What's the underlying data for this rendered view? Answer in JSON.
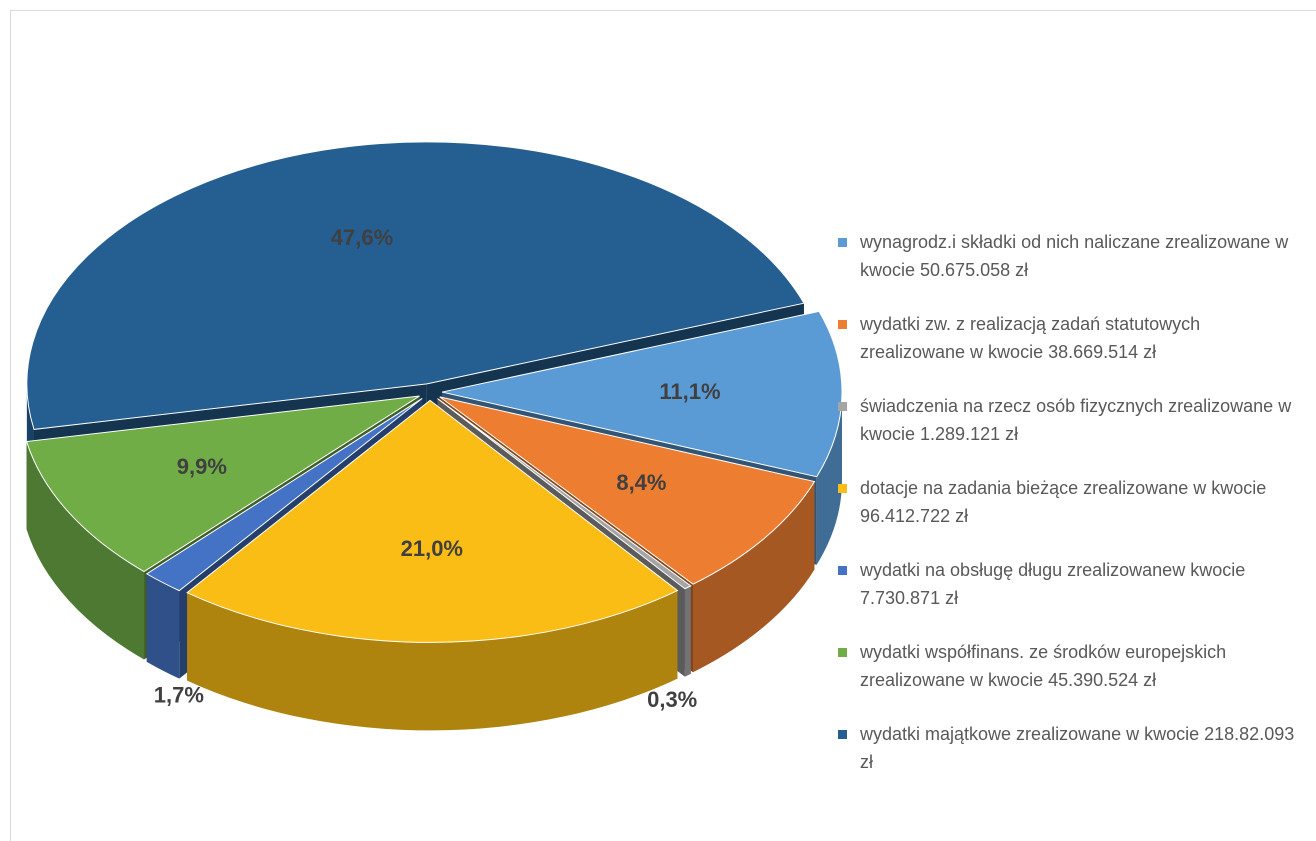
{
  "chart_data": {
    "type": "pie",
    "categories": [
      "wynagrodz.i składki od nich naliczane zrealizowane w kwocie 50.675.058 zł",
      "wydatki zw. z realizacją zadań statutowych zrealizowane w kwocie 38.669.514 zł",
      "świadczenia na rzecz osób fizycznych zrealizowane w kwocie 1.289.121 zł",
      "dotacje na zadania bieżące zrealizowane w kwocie 96.412.722 zł",
      "wydatki na obsługę długu zrealizowanew kwocie 7.730.871 zł",
      "wydatki współfinans. ze środków europejskich zrealizowane w kwocie 45.390.524 zł",
      "wydatki majątkowe zrealizowane w kwocie 218.82.093 zł"
    ],
    "values": [
      11.1,
      8.4,
      0.3,
      21.0,
      1.7,
      9.9,
      47.6
    ],
    "value_labels": [
      "11,1%",
      "8,4%",
      "0,3%",
      "21,0%",
      "1,7%",
      "9,9%",
      "47,6%"
    ],
    "colors": [
      "#5b9bd5",
      "#ed7d31",
      "#a5a5a5",
      "#f9bd15",
      "#4472c4",
      "#70ad47",
      "#255e91"
    ],
    "legend": "right"
  }
}
